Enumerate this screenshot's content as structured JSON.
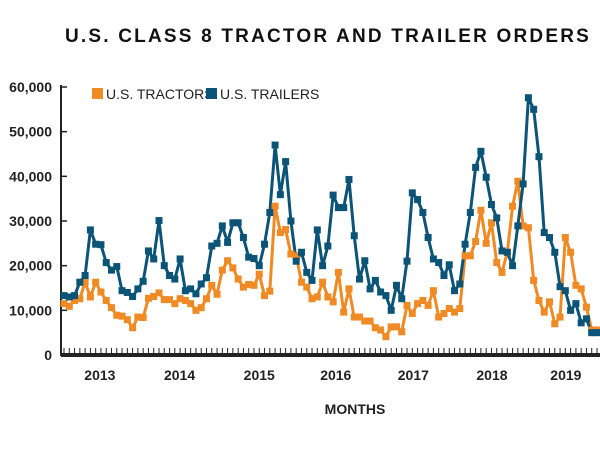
{
  "chart_data": {
    "type": "line",
    "title": "U.S. CLASS 8 TRACTOR AND TRAILER ORDERS",
    "xlabel": "MONTHS",
    "ylabel": "",
    "ylim": [
      0,
      60000
    ],
    "yticks": [
      0,
      10000,
      20000,
      30000,
      40000,
      50000,
      60000
    ],
    "ytick_labels": [
      "0",
      "10,000",
      "20,000",
      "30,000",
      "40,000",
      "50,000",
      "60,000"
    ],
    "x_year_labels": [
      {
        "label": "2013",
        "at_index": 6.8
      },
      {
        "label": "2014",
        "at_index": 21.9
      },
      {
        "label": "2015",
        "at_index": 37
      },
      {
        "label": "2016",
        "at_index": 51.5
      },
      {
        "label": "2017",
        "at_index": 66.2
      },
      {
        "label": "2018",
        "at_index": 81.1
      },
      {
        "label": "2019",
        "at_index": 95.1
      }
    ],
    "legend_position": "top-left",
    "series": [
      {
        "name": "U.S. TRACTORS",
        "color": "#f08a24",
        "values": [
          11500,
          10900,
          12200,
          12600,
          16300,
          13000,
          16300,
          14100,
          12200,
          10600,
          8900,
          8700,
          7900,
          6100,
          8500,
          8400,
          12700,
          13100,
          13900,
          12400,
          12400,
          11500,
          12600,
          12200,
          11500,
          10000,
          10600,
          12600,
          15600,
          13600,
          19000,
          21100,
          19500,
          17000,
          15200,
          15800,
          15600,
          18100,
          13300,
          14300,
          33300,
          27400,
          28100,
          22600,
          22200,
          16300,
          15200,
          12600,
          13000,
          16300,
          13000,
          11900,
          18500,
          9600,
          14800,
          8500,
          8500,
          7600,
          7600,
          6100,
          5600,
          4100,
          6300,
          6300,
          5200,
          11100,
          9300,
          11500,
          12200,
          11100,
          14400,
          8500,
          9300,
          10400,
          9600,
          10400,
          22200,
          22200,
          25400,
          32400,
          25000,
          29600,
          20700,
          18500,
          23000,
          33300,
          38900,
          28900,
          28500,
          16700,
          12200,
          9600,
          11900,
          7000,
          8500,
          26300,
          23000,
          15600,
          14800,
          10700,
          5600,
          5600
        ]
      },
      {
        "name": "U.S. TRAILERS",
        "color": "#0b5478",
        "values": [
          13300,
          13000,
          13300,
          16300,
          17800,
          28000,
          24800,
          24700,
          20700,
          19000,
          19800,
          14400,
          14000,
          13100,
          14800,
          16500,
          23300,
          21500,
          30100,
          20000,
          17800,
          17000,
          21500,
          14400,
          14800,
          13700,
          15900,
          17300,
          24400,
          25000,
          28900,
          25200,
          29600,
          29600,
          26300,
          21900,
          21600,
          20000,
          24800,
          31900,
          47000,
          35900,
          43300,
          30000,
          21000,
          23000,
          18500,
          16700,
          28000,
          20000,
          24400,
          35800,
          33000,
          33000,
          39300,
          26700,
          17000,
          21100,
          14800,
          16700,
          14100,
          13300,
          10000,
          15600,
          12600,
          21000,
          36300,
          34800,
          31900,
          26300,
          21500,
          20700,
          17800,
          20200,
          14400,
          15900,
          24800,
          31900,
          42000,
          45600,
          39800,
          33700,
          30700,
          23300,
          23000,
          20000,
          28900,
          38300,
          57600,
          55000,
          44400,
          27400,
          26300,
          23000,
          15300,
          14400,
          10000,
          11500,
          7200,
          8100,
          5000,
          5000
        ]
      }
    ]
  }
}
